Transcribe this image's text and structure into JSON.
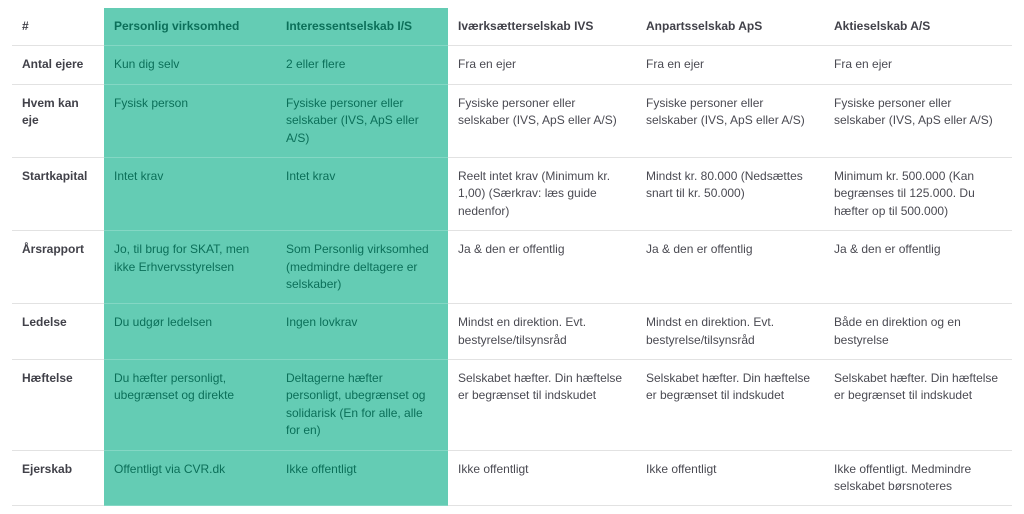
{
  "table": {
    "highlight_bg": "#64ccb4",
    "highlight_text": "#0b6f59",
    "text_color": "#4a4a52",
    "border_color": "#e2e2e2",
    "columns": [
      {
        "key": "hash",
        "label": "#",
        "highlight": false
      },
      {
        "key": "pv",
        "label": "Personlig virksomhed",
        "highlight": true
      },
      {
        "key": "is",
        "label": "Interessentselskab I/S",
        "highlight": true
      },
      {
        "key": "ivs",
        "label": "Iværksætterselskab IVS",
        "highlight": false
      },
      {
        "key": "aps",
        "label": "Anpartsselskab ApS",
        "highlight": false
      },
      {
        "key": "as",
        "label": "Aktieselskab A/S",
        "highlight": false
      }
    ],
    "rows": [
      {
        "head": "Antal ejere",
        "pv": "Kun dig selv",
        "is": "2 eller flere",
        "ivs": "Fra en ejer",
        "aps": "Fra en ejer",
        "as": "Fra en ejer"
      },
      {
        "head": "Hvem kan eje",
        "pv": "Fysisk person",
        "is": "Fysiske personer eller selskaber (IVS, ApS eller A/S)",
        "ivs": "Fysiske personer eller selskaber (IVS, ApS eller A/S)",
        "aps": "Fysiske personer eller selskaber (IVS, ApS eller A/S)",
        "as": "Fysiske personer eller selskaber (IVS, ApS eller A/S)"
      },
      {
        "head": "Startkapital",
        "pv": "Intet krav",
        "is": "Intet krav",
        "ivs": "Reelt intet krav (Minimum kr. 1,00) (Særkrav: læs guide nedenfor)",
        "aps": "Mindst kr. 80.000 (Nedsættes snart til kr. 50.000)",
        "as": "Minimum kr. 500.000 (Kan begrænses til 125.000. Du hæfter op til 500.000)"
      },
      {
        "head": "Årsrapport",
        "pv": "Jo, til brug for SKAT, men ikke Erhvervsstyrelsen",
        "is": "Som Personlig virksomhed (medmindre deltagere er selskaber)",
        "ivs": "Ja & den er offentlig",
        "aps": "Ja & den er offentlig",
        "as": "Ja & den er offentlig"
      },
      {
        "head": "Ledelse",
        "pv": "Du udgør ledelsen",
        "is": "Ingen lovkrav",
        "ivs": "Mindst en direktion. Evt. bestyrelse/tilsynsråd",
        "aps": "Mindst en direktion. Evt. bestyrelse/tilsynsråd",
        "as": "Både en direktion og en bestyrelse"
      },
      {
        "head": "Hæftelse",
        "pv": "Du hæfter personligt, ubegrænset og direkte",
        "is": "Deltagerne hæfter personligt, ubegrænset og solidarisk (En for alle, alle for en)",
        "ivs": "Selskabet hæfter. Din hæftelse er begrænset til indskudet",
        "aps": "Selskabet hæfter. Din hæftelse er begrænset til indskudet",
        "as": "Selskabet hæfter. Din hæftelse er begrænset til indskudet"
      },
      {
        "head": "Ejerskab",
        "pv": "Offentligt via CVR.dk",
        "is": "Ikke offentligt",
        "ivs": "Ikke offentligt",
        "aps": "Ikke offentligt",
        "as": "Ikke offentligt. Medmindre selskabet børsnoteres"
      }
    ]
  }
}
